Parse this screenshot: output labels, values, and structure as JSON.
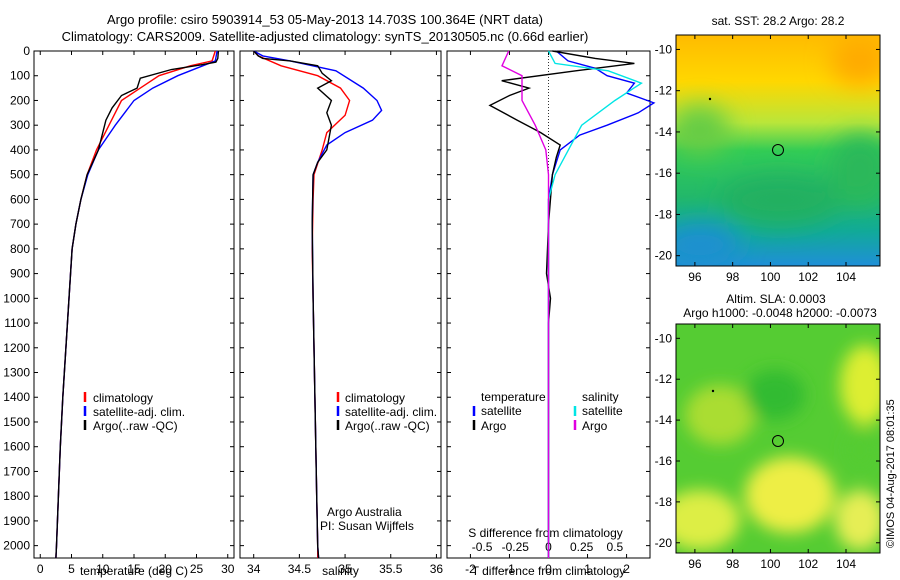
{
  "header": {
    "line1": "Argo profile: csiro 5903914_53 05-May-2013 14.703S 100.364E (NRT data)",
    "line2": "Climatology: CARS2009. Satellite-adjusted climatology: synTS_20130505.nc (0.66d earlier)"
  },
  "colors": {
    "climatology": "#ff0000",
    "satellite": "#0000ff",
    "argo": "#000000",
    "sal_satellite": "#00e5e5",
    "sal_argo": "#e000e0"
  },
  "chart_data": [
    {
      "type": "line",
      "panel": "temperature",
      "xlabel": "temperature (deg C)",
      "ylabel": "",
      "xlim": [
        -1,
        31
      ],
      "ylim": [
        2050,
        0
      ],
      "xticks": [
        0,
        5,
        10,
        15,
        20,
        25,
        30
      ],
      "yticks": [
        0,
        100,
        200,
        300,
        400,
        500,
        600,
        700,
        800,
        900,
        1000,
        1100,
        1200,
        1300,
        1400,
        1500,
        1600,
        1700,
        1800,
        1900,
        2000
      ],
      "legend": [
        "climatology",
        "satellite-adj. clim.",
        "Argo(..raw -QC)"
      ],
      "series": [
        {
          "name": "climatology",
          "points": [
            [
              28,
              0
            ],
            [
              27.5,
              40
            ],
            [
              24,
              60
            ],
            [
              19,
              100
            ],
            [
              16,
              150
            ],
            [
              13,
              200
            ],
            [
              11,
              300
            ],
            [
              9,
              400
            ],
            [
              7.5,
              500
            ],
            [
              6.5,
              600
            ],
            [
              5.7,
              700
            ],
            [
              5.1,
              800
            ],
            [
              4.6,
              1000
            ],
            [
              4.1,
              1200
            ],
            [
              3.6,
              1400
            ],
            [
              3.2,
              1600
            ],
            [
              2.9,
              1800
            ],
            [
              2.6,
              2000
            ],
            [
              2.5,
              2050
            ]
          ]
        },
        {
          "name": "satellite-adj. clim.",
          "points": [
            [
              28.3,
              0
            ],
            [
              28,
              40
            ],
            [
              26,
              60
            ],
            [
              22,
              100
            ],
            [
              18,
              150
            ],
            [
              15,
              200
            ],
            [
              12,
              300
            ],
            [
              9.3,
              400
            ],
            [
              7.6,
              500
            ],
            [
              6.5,
              600
            ],
            [
              5.7,
              700
            ],
            [
              5.1,
              800
            ],
            [
              4.6,
              1000
            ],
            [
              4.1,
              1200
            ],
            [
              3.6,
              1400
            ],
            [
              3.2,
              1600
            ],
            [
              2.9,
              1800
            ],
            [
              2.6,
              2000
            ],
            [
              2.5,
              2050
            ]
          ]
        },
        {
          "name": "Argo(..raw -QC)",
          "points": [
            [
              28.5,
              0
            ],
            [
              28.4,
              30
            ],
            [
              28.1,
              45
            ],
            [
              26,
              55
            ],
            [
              21,
              75
            ],
            [
              16,
              110
            ],
            [
              15.5,
              150
            ],
            [
              13,
              180
            ],
            [
              11.5,
              230
            ],
            [
              10.5,
              280
            ],
            [
              9.3,
              400
            ],
            [
              7.5,
              500
            ],
            [
              6.5,
              600
            ],
            [
              5.7,
              700
            ],
            [
              5.1,
              800
            ],
            [
              4.6,
              1000
            ],
            [
              4.1,
              1200
            ],
            [
              3.6,
              1400
            ],
            [
              3.2,
              1600
            ],
            [
              2.9,
              1800
            ],
            [
              2.6,
              2000
            ],
            [
              2.5,
              2050
            ]
          ]
        }
      ]
    },
    {
      "type": "line",
      "panel": "salinity",
      "xlabel": "salinity",
      "xlim": [
        33.85,
        36.05
      ],
      "ylim": [
        2050,
        0
      ],
      "xticks": [
        34,
        34.5,
        35,
        35.5,
        36
      ],
      "legend": [
        "climatology",
        "satellite-adj. clim.",
        "Argo(..raw -QC)"
      ],
      "annotation": [
        "Argo Australia",
        "PI: Susan Wijffels"
      ],
      "series": [
        {
          "name": "climatology",
          "points": [
            [
              34.0,
              0
            ],
            [
              34.05,
              20
            ],
            [
              34.3,
              60
            ],
            [
              34.7,
              100
            ],
            [
              34.95,
              150
            ],
            [
              35.05,
              200
            ],
            [
              35.0,
              260
            ],
            [
              34.8,
              330
            ],
            [
              34.75,
              400
            ],
            [
              34.66,
              500
            ],
            [
              34.65,
              600
            ],
            [
              34.64,
              800
            ],
            [
              34.65,
              1000
            ],
            [
              34.66,
              1200
            ],
            [
              34.67,
              1400
            ],
            [
              34.68,
              1600
            ],
            [
              34.69,
              1800
            ],
            [
              34.7,
              2000
            ],
            [
              34.7,
              2050
            ]
          ]
        },
        {
          "name": "satellite-adj. clim.",
          "points": [
            [
              34.0,
              0
            ],
            [
              34.1,
              20
            ],
            [
              34.4,
              40
            ],
            [
              34.9,
              80
            ],
            [
              35.2,
              150
            ],
            [
              35.35,
              200
            ],
            [
              35.4,
              240
            ],
            [
              35.3,
              280
            ],
            [
              35.0,
              330
            ],
            [
              34.8,
              380
            ],
            [
              34.7,
              450
            ],
            [
              34.65,
              500
            ],
            [
              34.64,
              700
            ],
            [
              34.65,
              1000
            ],
            [
              34.66,
              1200
            ],
            [
              34.67,
              1400
            ],
            [
              34.68,
              1600
            ],
            [
              34.69,
              1800
            ],
            [
              34.7,
              2000
            ],
            [
              34.71,
              2050
            ]
          ]
        },
        {
          "name": "Argo(..raw -QC)",
          "points": [
            [
              34.0,
              0
            ],
            [
              34.05,
              20
            ],
            [
              34.1,
              30
            ],
            [
              34.4,
              40
            ],
            [
              34.7,
              60
            ],
            [
              34.75,
              90
            ],
            [
              34.85,
              120
            ],
            [
              34.7,
              150
            ],
            [
              34.85,
              200
            ],
            [
              34.8,
              250
            ],
            [
              34.85,
              300
            ],
            [
              34.8,
              400
            ],
            [
              34.7,
              450
            ],
            [
              34.65,
              500
            ],
            [
              34.64,
              700
            ],
            [
              34.65,
              1000
            ],
            [
              34.66,
              1200
            ],
            [
              34.67,
              1400
            ],
            [
              34.68,
              1600
            ],
            [
              34.69,
              1800
            ],
            [
              34.7,
              2000
            ],
            [
              34.71,
              2050
            ]
          ]
        }
      ]
    },
    {
      "type": "line",
      "panel": "difference",
      "xlabel": "T difference from climatology",
      "xlabel_top": "S difference from climatology",
      "xlim": [
        -2.6,
        2.6
      ],
      "ylim": [
        2050,
        0
      ],
      "xticks": [
        -2,
        -1,
        0,
        1,
        2
      ],
      "xticks_top": [
        -0.5,
        -0.25,
        0,
        0.25,
        0.5
      ],
      "legend": {
        "temperature": "temperature",
        "salinity": "salinity",
        "satellite": "satellite",
        "argo": "Argo"
      },
      "series": [
        {
          "name": "T satellite",
          "points": [
            [
              0.2,
              0
            ],
            [
              0.5,
              40
            ],
            [
              1.2,
              70
            ],
            [
              1.5,
              100
            ],
            [
              2.2,
              130
            ],
            [
              2.0,
              170
            ],
            [
              2.7,
              210
            ],
            [
              2.3,
              250
            ],
            [
              1.5,
              300
            ],
            [
              0.8,
              340
            ],
            [
              0.3,
              400
            ],
            [
              0.1,
              500
            ],
            [
              0,
              600
            ],
            [
              0,
              2050
            ]
          ]
        },
        {
          "name": "T Argo",
          "points": [
            [
              0.1,
              0
            ],
            [
              1.2,
              30
            ],
            [
              2.2,
              50
            ],
            [
              0.7,
              80
            ],
            [
              -1.2,
              120
            ],
            [
              -0.5,
              150
            ],
            [
              -1.0,
              180
            ],
            [
              -1.5,
              220
            ],
            [
              -0.8,
              280
            ],
            [
              -0.2,
              330
            ],
            [
              0.3,
              380
            ],
            [
              0.2,
              430
            ],
            [
              0.1,
              500
            ],
            [
              0,
              700
            ],
            [
              -0.05,
              900
            ],
            [
              0.05,
              1000
            ],
            [
              0,
              1100
            ],
            [
              0,
              2050
            ]
          ]
        },
        {
          "name": "S satellite",
          "points": [
            [
              0,
              0
            ],
            [
              0.05,
              50
            ],
            [
              0.45,
              80
            ],
            [
              0.7,
              130
            ],
            [
              0.5,
              200
            ],
            [
              0.25,
              300
            ],
            [
              0.15,
              400
            ],
            [
              0.05,
              500
            ],
            [
              0,
              600
            ],
            [
              0,
              2050
            ]
          ]
        },
        {
          "name": "S Argo",
          "points": [
            [
              -0.3,
              0
            ],
            [
              -0.35,
              60
            ],
            [
              -0.2,
              100
            ],
            [
              -0.2,
              200
            ],
            [
              -0.1,
              300
            ],
            [
              -0.02,
              400
            ],
            [
              0,
              500
            ],
            [
              0,
              2050
            ]
          ]
        }
      ]
    },
    {
      "type": "heatmap",
      "panel": "sst_map",
      "title": "sat. SST: 28.2 Argo: 28.2",
      "xticks": [
        96,
        98,
        100,
        102,
        104
      ],
      "yticks": [
        -10,
        -12,
        -14,
        -16,
        -18,
        -20
      ],
      "xlim": [
        95,
        105.8
      ],
      "ylim": [
        -20.5,
        -9.3
      ],
      "argo_position": [
        100.364,
        -14.703
      ]
    },
    {
      "type": "heatmap",
      "panel": "sla_map",
      "title_line1": "Altim. SLA: 0.0003",
      "title_line2": "Argo h1000: -0.0048 h2000: -0.0073",
      "xticks": [
        96,
        98,
        100,
        102,
        104
      ],
      "yticks": [
        -10,
        -12,
        -14,
        -16,
        -18,
        -20
      ],
      "xlim": [
        95,
        105.8
      ],
      "ylim": [
        -20.5,
        -9.3
      ],
      "argo_position": [
        100.364,
        -14.703
      ]
    }
  ],
  "footer": {
    "stamp": "©IMOS 04-Aug-2017 08:01:35"
  }
}
